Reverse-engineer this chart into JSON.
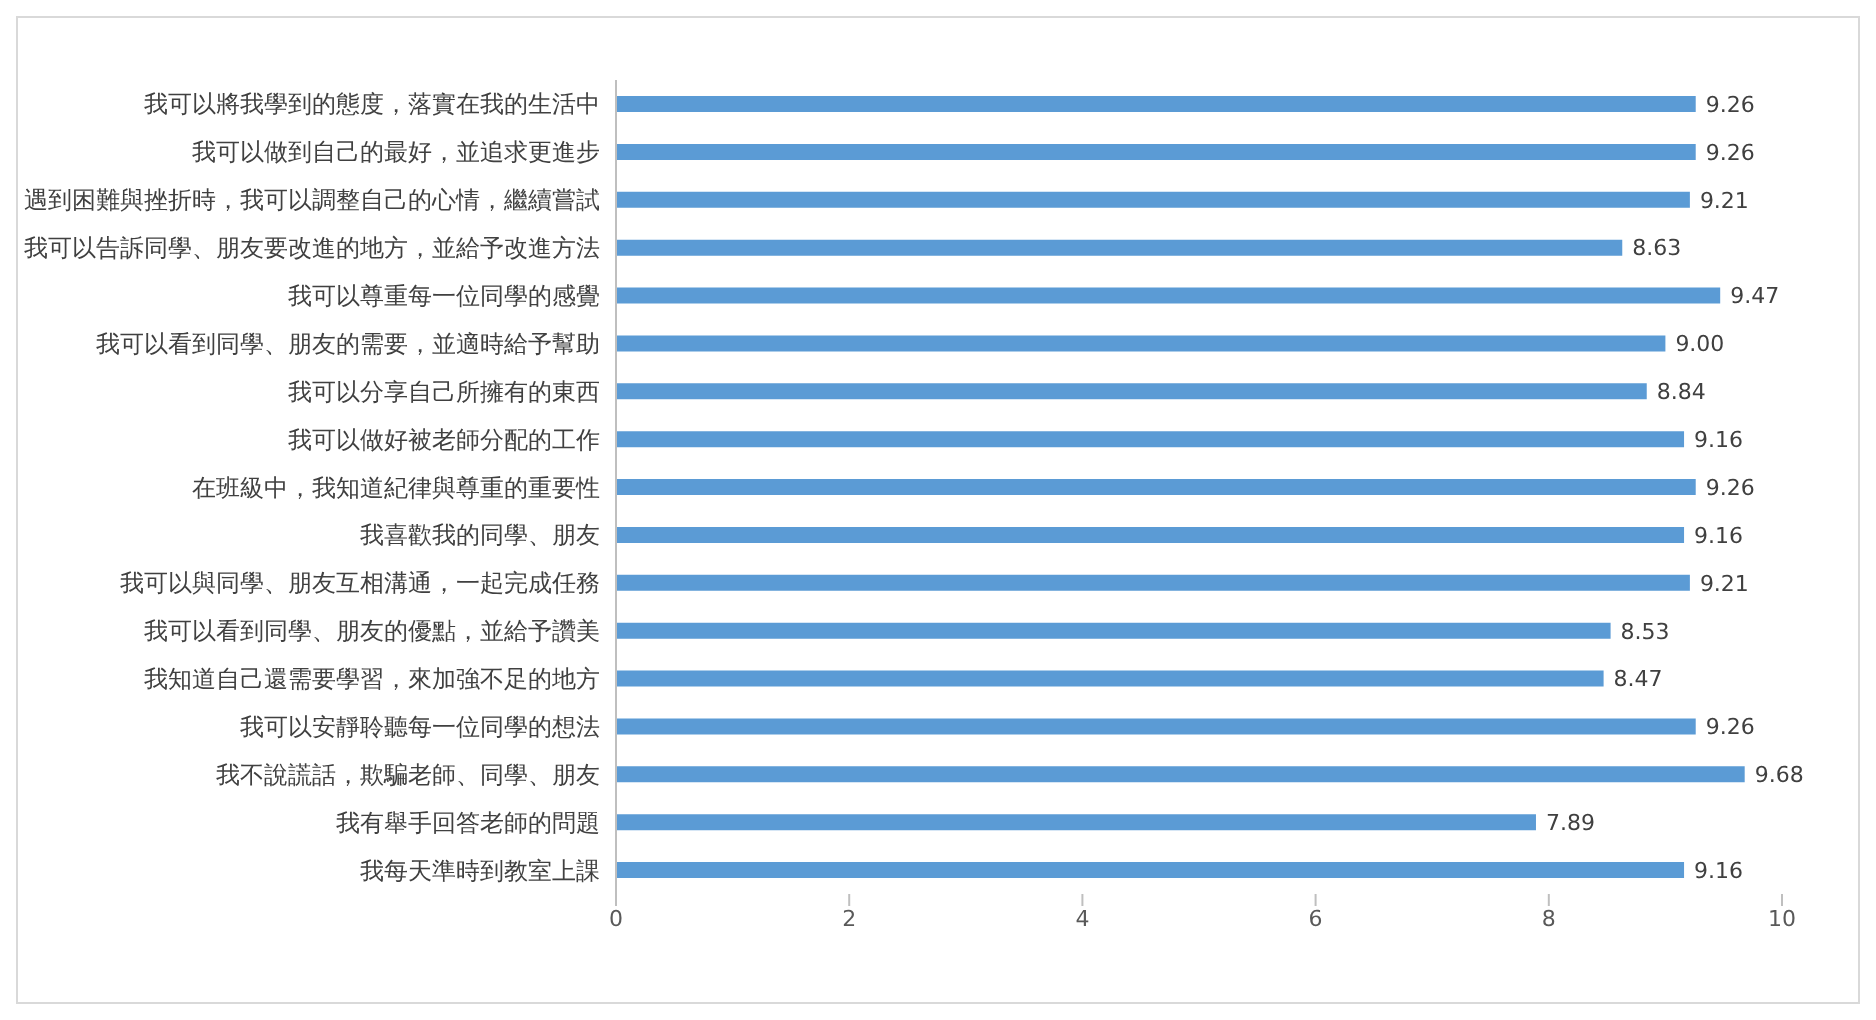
{
  "chart_data": {
    "type": "bar",
    "orientation": "horizontal",
    "categories": [
      "我可以將我學到的態度，落實在我的生活中",
      "我可以做到自己的最好，並追求更進步",
      "遇到困難與挫折時，我可以調整自己的心情，繼續嘗試",
      "我可以告訴同學、朋友要改進的地方，並給予改進方法",
      "我可以尊重每一位同學的感覺",
      "我可以看到同學、朋友的需要，並適時給予幫助",
      "我可以分享自己所擁有的東西",
      "我可以做好被老師分配的工作",
      "在班級中，我知道紀律與尊重的重要性",
      "我喜歡我的同學、朋友",
      "我可以與同學、朋友互相溝通，一起完成任務",
      "我可以看到同學、朋友的優點，並給予讚美",
      "我知道自己還需要學習，來加強不足的地方",
      "我可以安靜聆聽每一位同學的想法",
      "我不說謊話，欺騙老師、同學、朋友",
      "我有舉手回答老師的問題",
      "我每天準時到教室上課"
    ],
    "values": [
      9.26,
      9.26,
      9.21,
      8.63,
      9.47,
      9.0,
      8.84,
      9.16,
      9.26,
      9.16,
      9.21,
      8.53,
      8.47,
      9.26,
      9.68,
      7.89,
      9.16
    ],
    "value_labels": [
      "9.26",
      "9.26",
      "9.21",
      "8.63",
      "9.47",
      "9.00",
      "8.84",
      "9.16",
      "9.26",
      "9.16",
      "9.21",
      "8.53",
      "8.47",
      "9.26",
      "9.68",
      "7.89",
      "9.16"
    ],
    "color": "#5b9bd5",
    "xlim": [
      0,
      10
    ],
    "xticks": [
      0,
      2,
      4,
      6,
      8,
      10
    ],
    "grid": false,
    "legend": false
  }
}
